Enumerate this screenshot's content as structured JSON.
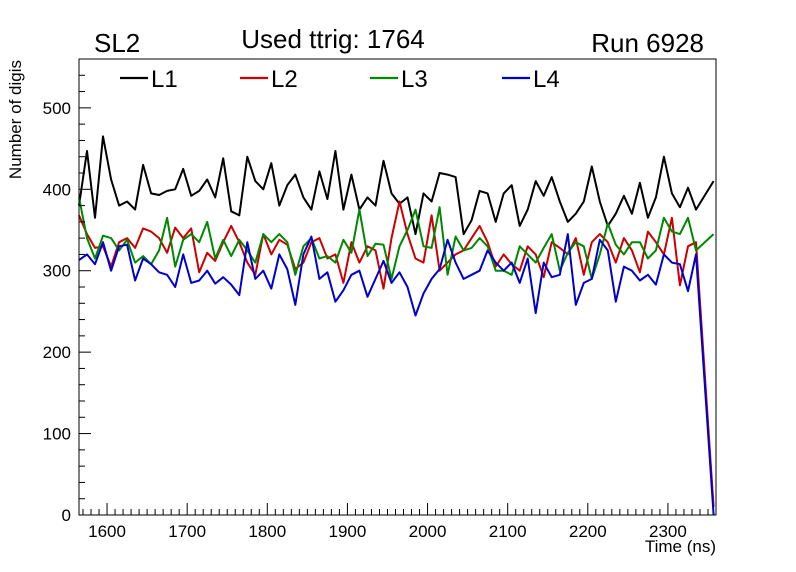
{
  "chart_data": {
    "type": "line",
    "title": "Used ttrig: 1764",
    "top_left_label": "SL2",
    "top_right_label": "Run 6928",
    "xlabel": "Time (ns)",
    "ylabel": "Number of digis",
    "xlim": [
      1565,
      2360
    ],
    "ylim": [
      0,
      560
    ],
    "x_ticks": [
      1600,
      1700,
      1800,
      1900,
      2000,
      2100,
      2200,
      2300
    ],
    "y_ticks": [
      0,
      100,
      200,
      300,
      400,
      500
    ],
    "x_start": 1565,
    "x_step": 10,
    "x_end_drop": 2360,
    "legend_position": "top",
    "series": [
      {
        "name": "L1",
        "color": "#000000",
        "values": [
          380,
          447,
          365,
          465,
          412,
          380,
          385,
          375,
          430,
          395,
          393,
          398,
          400,
          425,
          392,
          398,
          412,
          390,
          438,
          373,
          368,
          440,
          410,
          400,
          432,
          380,
          405,
          418,
          390,
          375,
          422,
          388,
          447,
          375,
          418,
          375,
          390,
          380,
          435,
          395,
          382,
          390,
          345,
          395,
          385,
          420,
          418,
          415,
          345,
          362,
          398,
          395,
          360,
          395,
          405,
          355,
          375,
          410,
          392,
          415,
          385,
          360,
          370,
          385,
          428,
          385,
          355,
          370,
          392,
          370,
          408,
          365,
          390,
          440,
          395,
          378,
          402,
          375,
          410
        ]
      },
      {
        "name": "L2",
        "color": "#cc0000",
        "values": [
          368,
          345,
          328,
          330,
          305,
          335,
          340,
          328,
          352,
          348,
          340,
          322,
          353,
          340,
          352,
          298,
          322,
          312,
          335,
          355,
          335,
          310,
          295,
          345,
          320,
          338,
          332,
          302,
          310,
          335,
          340,
          315,
          320,
          285,
          335,
          310,
          330,
          325,
          278,
          340,
          385,
          345,
          315,
          310,
          368,
          300,
          310,
          320,
          325,
          340,
          355,
          335,
          305,
          320,
          308,
          300,
          330,
          320,
          292,
          335,
          328,
          320,
          340,
          295,
          335,
          345,
          335,
          310,
          340,
          325,
          298,
          348,
          335,
          320,
          365,
          282,
          330,
          335,
          10
        ]
      },
      {
        "name": "L3",
        "color": "#008800",
        "values": [
          390,
          340,
          315,
          343,
          340,
          325,
          338,
          310,
          318,
          308,
          325,
          365,
          305,
          338,
          345,
          335,
          360,
          315,
          338,
          318,
          338,
          325,
          310,
          345,
          335,
          345,
          335,
          295,
          330,
          340,
          315,
          318,
          310,
          338,
          322,
          375,
          318,
          333,
          332,
          290,
          330,
          350,
          375,
          330,
          328,
          378,
          295,
          342,
          325,
          328,
          340,
          330,
          300,
          300,
          295,
          330,
          320,
          310,
          328,
          345,
          300,
          322,
          335,
          330,
          290,
          320,
          358,
          332,
          320,
          335,
          335,
          315,
          325,
          365,
          348,
          345,
          365,
          325,
          345
        ]
      },
      {
        "name": "L4",
        "color": "#0000cc",
        "values": [
          313,
          320,
          308,
          335,
          300,
          330,
          332,
          288,
          315,
          308,
          298,
          295,
          280,
          320,
          285,
          288,
          300,
          284,
          292,
          283,
          270,
          335,
          290,
          300,
          278,
          320,
          302,
          258,
          320,
          342,
          290,
          298,
          262,
          276,
          295,
          300,
          268,
          290,
          312,
          285,
          298,
          280,
          245,
          272,
          290,
          302,
          338,
          310,
          290,
          295,
          300,
          325,
          310,
          300,
          310,
          285,
          315,
          248,
          310,
          292,
          295,
          345,
          258,
          285,
          290,
          338,
          325,
          262,
          305,
          300,
          288,
          295,
          283,
          320,
          310,
          308,
          275,
          320,
          0
        ]
      }
    ]
  }
}
